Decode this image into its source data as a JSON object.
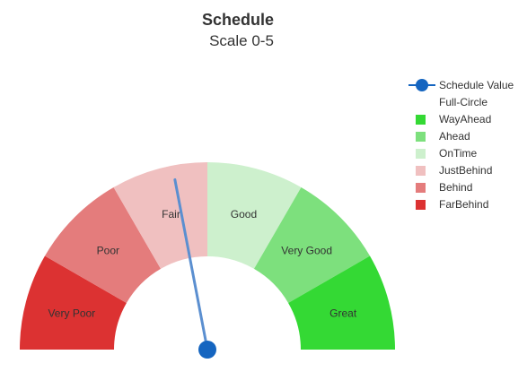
{
  "chart_data": {
    "type": "gauge",
    "title": "Schedule",
    "subtitle": "Scale 0-5",
    "min": 0,
    "max": 5,
    "value": 2.2,
    "bands": [
      {
        "label": "Very Poor",
        "from": 0,
        "to": 0.833,
        "color": "#dc3232"
      },
      {
        "label": "Poor",
        "from": 0.833,
        "to": 1.667,
        "color": "#e47c7c"
      },
      {
        "label": "Fair",
        "from": 1.667,
        "to": 2.5,
        "color": "#f0c0c0"
      },
      {
        "label": "Good",
        "from": 2.5,
        "to": 3.333,
        "color": "#cdf0cd"
      },
      {
        "label": "Very Good",
        "from": 3.333,
        "to": 4.167,
        "color": "#7de07d"
      },
      {
        "label": "Great",
        "from": 4.167,
        "to": 5,
        "color": "#34d934"
      }
    ],
    "needle_color": "#5b8fd0",
    "pivot_color": "#1565c0",
    "legend": [
      {
        "label": "Schedule Value",
        "symbol": "line-dot",
        "color": "#1565c0"
      },
      {
        "label": "Full-Circle",
        "symbol": "none",
        "color": ""
      },
      {
        "label": "WayAhead",
        "symbol": "square",
        "color": "#34d934"
      },
      {
        "label": "Ahead",
        "symbol": "square",
        "color": "#7de07d"
      },
      {
        "label": "OnTime",
        "symbol": "square",
        "color": "#cdf0cd"
      },
      {
        "label": "JustBehind",
        "symbol": "square",
        "color": "#f0c0c0"
      },
      {
        "label": "Behind",
        "symbol": "square",
        "color": "#e47c7c"
      },
      {
        "label": "FarBehind",
        "symbol": "square",
        "color": "#dc3232"
      }
    ],
    "legend_position": "right"
  }
}
